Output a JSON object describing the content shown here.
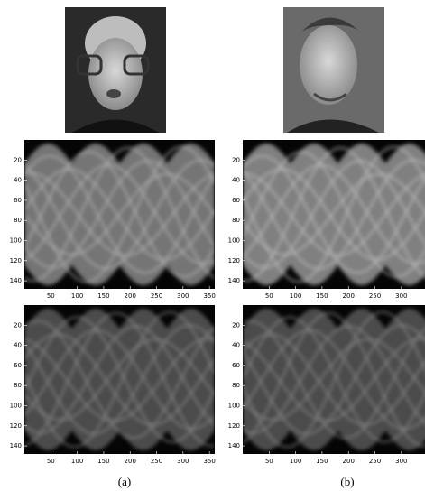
{
  "figure": {
    "sinogram_axes": {
      "xticks": [
        50,
        100,
        150,
        200,
        250,
        300,
        350
      ],
      "yticks": [
        20,
        40,
        60,
        80,
        100,
        120,
        140
      ]
    },
    "captions": [
      "(a)",
      "(b)"
    ]
  }
}
